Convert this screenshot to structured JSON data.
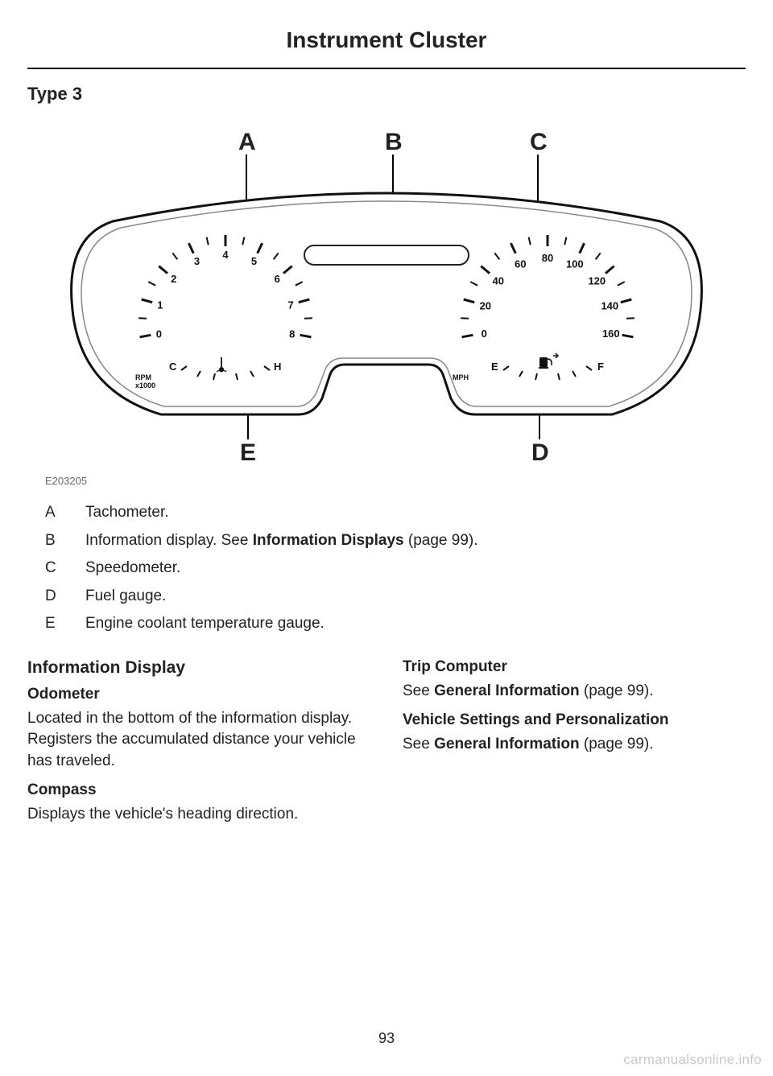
{
  "page": {
    "title": "Instrument Cluster",
    "subhead": "Type 3",
    "image_id": "E203205",
    "page_number": "93",
    "watermark": "carmanualsonline.info"
  },
  "callouts": {
    "A": "A",
    "B": "B",
    "C": "C",
    "D": "D",
    "E": "E"
  },
  "tachometer": {
    "labels": [
      "0",
      "1",
      "2",
      "3",
      "4",
      "5",
      "6",
      "7",
      "8"
    ],
    "unit_top": "RPM",
    "unit_bottom": "x1000",
    "temp_cold": "C",
    "temp_hot": "H"
  },
  "speedometer": {
    "labels": [
      "0",
      "20",
      "40",
      "60",
      "80",
      "100",
      "120",
      "140",
      "160"
    ],
    "unit": "MPH",
    "fuel_empty": "E",
    "fuel_full": "F"
  },
  "legend": [
    {
      "letter": "A",
      "text": "Tachometer."
    },
    {
      "letter": "B",
      "text_pre": "Information display.  See ",
      "bold": "Information Displays",
      "text_post": " (page 99)."
    },
    {
      "letter": "C",
      "text": "Speedometer."
    },
    {
      "letter": "D",
      "text": "Fuel gauge."
    },
    {
      "letter": "E",
      "text": "Engine coolant temperature gauge."
    }
  ],
  "left_column": {
    "section": "Information Display",
    "odometer_head": "Odometer",
    "odometer_body": "Located in the bottom of the information display. Registers the accumulated distance your vehicle has traveled.",
    "compass_head": "Compass",
    "compass_body": "Displays the vehicle's heading direction."
  },
  "right_column": {
    "trip_head": "Trip Computer",
    "trip_body_pre": "See ",
    "trip_body_bold": "General Information",
    "trip_body_post": " (page 99).",
    "settings_head": "Vehicle Settings and Personalization",
    "settings_body_pre": "See ",
    "settings_body_bold": "General Information",
    "settings_body_post": " (page 99)."
  }
}
